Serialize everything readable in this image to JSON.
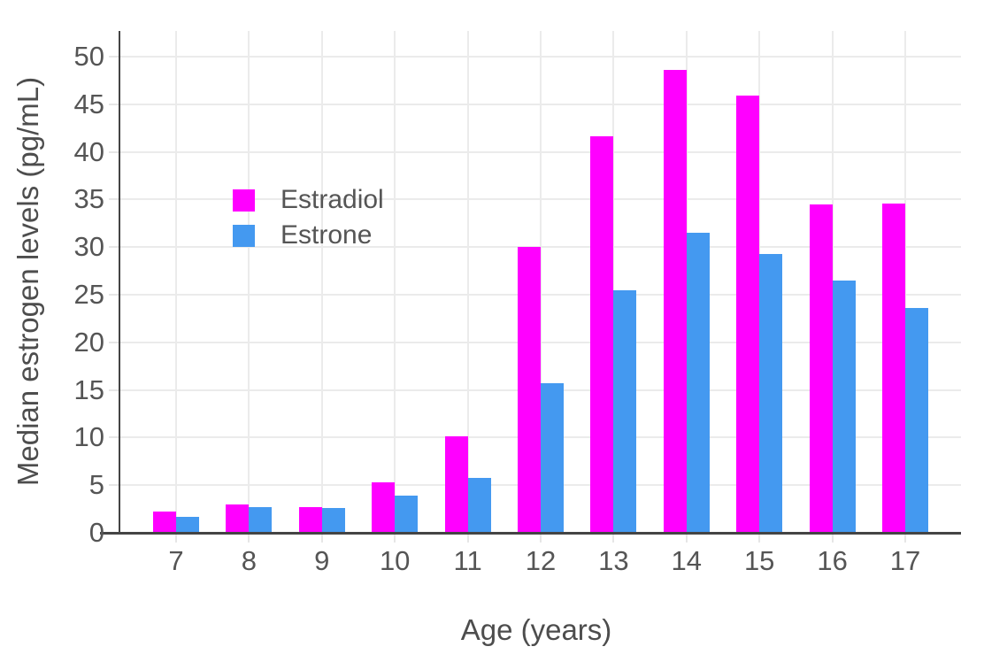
{
  "chart_data": {
    "type": "bar",
    "barmode": "group",
    "title": "",
    "xlabel": "Age (years)",
    "ylabel": "Median estrogen levels (pg/mL)",
    "categories": [
      "7",
      "8",
      "9",
      "10",
      "11",
      "12",
      "13",
      "14",
      "15",
      "16",
      "17"
    ],
    "series": [
      {
        "name": "Estradiol",
        "color": "#FF00FF",
        "values": [
          2.2,
          3.0,
          2.7,
          5.3,
          10.1,
          30.0,
          41.6,
          48.6,
          45.9,
          34.5,
          34.6
        ]
      },
      {
        "name": "Estrone",
        "color": "#4499F0",
        "values": [
          1.7,
          2.7,
          2.6,
          3.9,
          5.8,
          15.7,
          25.5,
          31.5,
          29.3,
          26.5,
          23.6
        ]
      }
    ],
    "ylim": [
      0,
      50
    ],
    "yticks": [
      0,
      5,
      10,
      15,
      20,
      25,
      30,
      35,
      40,
      45,
      50
    ],
    "grid": true,
    "legend_position": "inside-top-left"
  },
  "colors": {
    "background": "#FFFFFF",
    "grid": "#EBEBEB",
    "tick": "#E6E6E6",
    "axis_line": "#444444",
    "tick_text": "#555555",
    "title_text": "#4D4D4D"
  }
}
